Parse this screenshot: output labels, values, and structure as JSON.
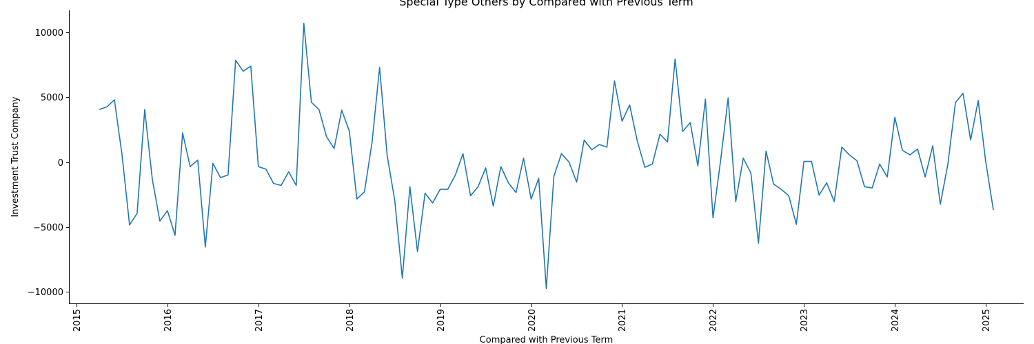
{
  "chart_data": {
    "type": "line",
    "title": "Special Type Others by Compared with Previous Term",
    "xlabel": "Compared with Previous Term",
    "ylabel": "Investment Trust Company",
    "x_ticks": [
      "2015",
      "2016",
      "2017",
      "2018",
      "2019",
      "2020",
      "2021",
      "2022",
      "2023",
      "2024",
      "2025"
    ],
    "y_ticks": [
      -10000,
      -5000,
      0,
      5000,
      10000
    ],
    "y_tick_labels": [
      "−10000",
      "−5000",
      "0",
      "5000",
      "10000"
    ],
    "xlim": [
      "2014-12-01",
      "2025-06-01"
    ],
    "ylim": [
      -10900,
      11700
    ],
    "grid": false,
    "series": [
      {
        "color": "#1f77b4",
        "x": [
          "2015-04",
          "2015-05",
          "2015-06",
          "2015-07",
          "2015-08",
          "2015-09",
          "2015-10",
          "2015-11",
          "2015-12",
          "2016-01",
          "2016-02",
          "2016-03",
          "2016-04",
          "2016-05",
          "2016-06",
          "2016-07",
          "2016-08",
          "2016-09",
          "2016-10",
          "2016-11",
          "2016-12",
          "2017-01",
          "2017-02",
          "2017-03",
          "2017-04",
          "2017-05",
          "2017-06",
          "2017-07",
          "2017-08",
          "2017-09",
          "2017-10",
          "2017-11",
          "2017-12",
          "2018-01",
          "2018-02",
          "2018-03",
          "2018-04",
          "2018-05",
          "2018-06",
          "2018-07",
          "2018-08",
          "2018-09",
          "2018-10",
          "2018-11",
          "2018-12",
          "2019-01",
          "2019-02",
          "2019-03",
          "2019-04",
          "2019-05",
          "2019-06",
          "2019-07",
          "2019-08",
          "2019-09",
          "2019-10",
          "2019-11",
          "2019-12",
          "2020-01",
          "2020-02",
          "2020-03",
          "2020-04",
          "2020-05",
          "2020-06",
          "2020-07",
          "2020-08",
          "2020-09",
          "2020-10",
          "2020-11",
          "2020-12",
          "2021-01",
          "2021-02",
          "2021-03",
          "2021-04",
          "2021-05",
          "2021-06",
          "2021-07",
          "2021-08",
          "2021-09",
          "2021-10",
          "2021-11",
          "2021-12",
          "2022-01",
          "2022-02",
          "2022-03",
          "2022-04",
          "2022-05",
          "2022-06",
          "2022-07",
          "2022-08",
          "2022-09",
          "2022-10",
          "2022-11",
          "2022-12",
          "2023-01",
          "2023-02",
          "2023-03",
          "2023-04",
          "2023-05",
          "2023-06",
          "2023-07",
          "2023-08",
          "2023-09",
          "2023-10",
          "2023-11",
          "2023-12",
          "2024-01",
          "2024-02",
          "2024-03",
          "2024-04",
          "2024-05",
          "2024-06",
          "2024-07",
          "2024-08",
          "2024-09",
          "2024-10",
          "2024-11",
          "2024-12",
          "2025-01",
          "2025-02"
        ],
        "values": [
          4050,
          4250,
          4800,
          600,
          -4850,
          -3950,
          4050,
          -1300,
          -4550,
          -3750,
          -5650,
          2250,
          -350,
          150,
          -6550,
          -100,
          -1200,
          -1000,
          7850,
          7000,
          7400,
          -350,
          -550,
          -1650,
          -1800,
          -750,
          -1800,
          10700,
          4600,
          4050,
          1950,
          1050,
          4000,
          2400,
          -2850,
          -2300,
          1500,
          7300,
          500,
          -2950,
          -8950,
          -1900,
          -6900,
          -2400,
          -3150,
          -2100,
          -2100,
          -1000,
          650,
          -2600,
          -1900,
          -450,
          -3400,
          -350,
          -1600,
          -2350,
          300,
          -2850,
          -1250,
          -9750,
          -1100,
          650,
          0,
          -1550,
          1700,
          950,
          1350,
          1150,
          6250,
          3150,
          4400,
          1650,
          -400,
          -150,
          2150,
          1550,
          7950,
          2350,
          3050,
          -300,
          4850,
          -4300,
          100,
          4950,
          -3050,
          300,
          -850,
          -6250,
          850,
          -1700,
          -2100,
          -2600,
          -4800,
          50,
          50,
          -2550,
          -1600,
          -3050,
          1150,
          550,
          100,
          -1900,
          -2000,
          -150,
          -1150,
          3450,
          900,
          550,
          1000,
          -1150,
          1250,
          -3250,
          -150,
          4600,
          5300,
          1700,
          4750,
          0,
          -3700
        ]
      }
    ]
  }
}
